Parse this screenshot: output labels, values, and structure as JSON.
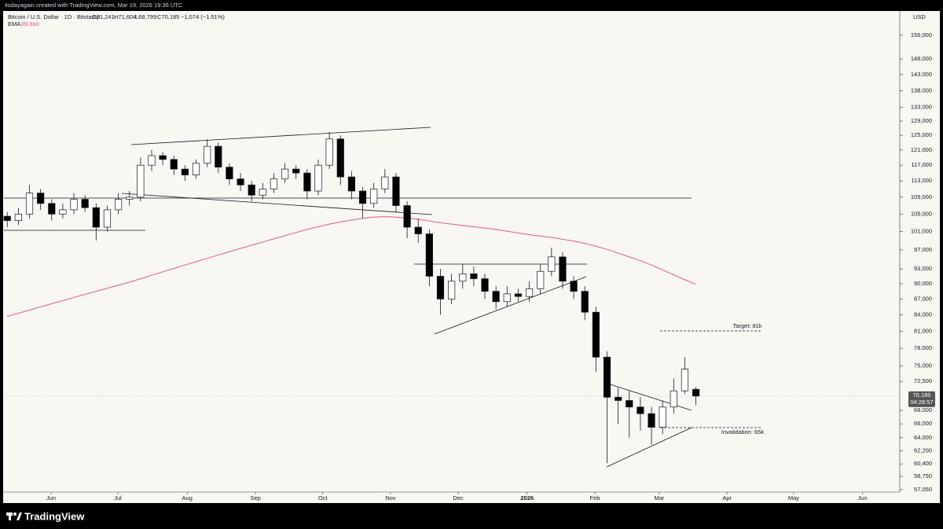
{
  "chart_data": {
    "type": "candlestick",
    "attribution": "itsdayagain created with TradingView.com, Mar 19, 2026 19:36 UTC",
    "title": "Bitcoin / U.S. Dollar · 1D · Bitstamp",
    "ohlc_labels": [
      "O71,241",
      "H71,604",
      "L68,799",
      "C70,185",
      "−1,074 (−1.51%)"
    ],
    "currency": "USD",
    "brand": "TradingView",
    "log_scale": true,
    "up_color": "#ffffff",
    "down_color": "#000000",
    "open": [
      104500,
      103500,
      105000,
      110000,
      107500,
      105000,
      106000,
      108500,
      106500,
      102000,
      106000,
      108500,
      109000,
      117000,
      119500,
      118500,
      116000,
      114500,
      117500,
      122000,
      116500,
      113500,
      112000,
      109500,
      111000,
      113500,
      116000,
      115000,
      110500,
      117000,
      124000,
      114000,
      110500,
      107500,
      111000,
      114000,
      107000,
      102000,
      100500,
      91500,
      87000,
      90500,
      92000,
      91000,
      88500,
      86500,
      88000,
      87500,
      89000,
      92500,
      95500,
      90500,
      88500,
      84500,
      76500,
      70000,
      69500,
      68500,
      67500,
      65500,
      68500,
      71000,
      71241
    ],
    "high": [
      105500,
      106500,
      112000,
      111000,
      108500,
      107500,
      110000,
      109500,
      107500,
      107000,
      110000,
      110500,
      119000,
      121000,
      120500,
      119500,
      117000,
      118500,
      124000,
      123000,
      117500,
      115000,
      113000,
      112500,
      115000,
      117500,
      117000,
      116000,
      118500,
      126000,
      125000,
      115500,
      111500,
      112500,
      116000,
      115000,
      108000,
      104000,
      101500,
      93000,
      92000,
      94000,
      93500,
      92000,
      89500,
      89500,
      89000,
      90500,
      94000,
      97500,
      96500,
      91500,
      89500,
      85500,
      77500,
      71500,
      71000,
      70000,
      68500,
      69500,
      73000,
      76500,
      71604
    ],
    "low": [
      102000,
      102500,
      104000,
      106000,
      103500,
      104000,
      105000,
      105500,
      99000,
      101000,
      105000,
      107000,
      108000,
      115500,
      117000,
      114500,
      113000,
      113500,
      116500,
      115000,
      112000,
      110500,
      108000,
      108500,
      110000,
      112500,
      113500,
      108500,
      109500,
      116000,
      112000,
      108500,
      104000,
      106500,
      110000,
      105500,
      99500,
      98500,
      89500,
      84000,
      86000,
      89000,
      89500,
      87000,
      85000,
      85500,
      86500,
      86500,
      88000,
      91500,
      89000,
      87000,
      83000,
      74000,
      60500,
      66000,
      64000,
      65000,
      63000,
      64500,
      67500,
      70500,
      68799
    ],
    "close": [
      103500,
      105000,
      110000,
      107500,
      105000,
      106000,
      108500,
      106500,
      102000,
      106000,
      108500,
      109000,
      117000,
      119500,
      118500,
      116000,
      114500,
      117500,
      122000,
      116500,
      113500,
      112000,
      109500,
      111000,
      113500,
      116000,
      115000,
      110500,
      117000,
      124000,
      114000,
      110500,
      107500,
      111000,
      114000,
      107000,
      102000,
      100500,
      91500,
      87000,
      90500,
      92000,
      91000,
      88500,
      86500,
      88000,
      87500,
      89000,
      92500,
      95500,
      90500,
      88500,
      84500,
      76500,
      70000,
      69500,
      68500,
      67500,
      65500,
      68500,
      71000,
      74500,
      70185
    ],
    "last_price_label": "70,185",
    "countdown": "04:28:57",
    "ema": {
      "name": "EMA",
      "color": "#e8597b",
      "last_label": "89,860",
      "values": [
        83700,
        84300,
        84900,
        85500,
        86100,
        86700,
        87300,
        87900,
        88500,
        89100,
        89700,
        90300,
        91000,
        91700,
        92400,
        93100,
        93800,
        94500,
        95200,
        95900,
        96600,
        97300,
        98000,
        98700,
        99400,
        100100,
        100800,
        101500,
        102100,
        102700,
        103200,
        103600,
        104000,
        104300,
        104400,
        104300,
        104100,
        103800,
        103400,
        103000,
        102700,
        102400,
        102100,
        101800,
        101500,
        101100,
        100700,
        100300,
        100000,
        99700,
        99300,
        98900,
        98400,
        97800,
        97100,
        96300,
        95500,
        94700,
        93800,
        92800,
        91800,
        90800,
        89860
      ]
    },
    "ylim": [
      56550,
      164600
    ],
    "yticks": [
      {
        "value": 156000,
        "label": "156,000"
      },
      {
        "value": 148000,
        "label": "148,000"
      },
      {
        "value": 143000,
        "label": "143,000"
      },
      {
        "value": 138000,
        "label": "138,000"
      },
      {
        "value": 133000,
        "label": "133,000"
      },
      {
        "value": 129000,
        "label": "129,000"
      },
      {
        "value": 125000,
        "label": "125,000"
      },
      {
        "value": 121000,
        "label": "121,000"
      },
      {
        "value": 117000,
        "label": "117,000"
      },
      {
        "value": 113000,
        "label": "113,000"
      },
      {
        "value": 109000,
        "label": "109,000"
      },
      {
        "value": 105000,
        "label": "105,000"
      },
      {
        "value": 101000,
        "label": "101,000"
      },
      {
        "value": 97000,
        "label": "97,000"
      },
      {
        "value": 93000,
        "label": "93,000"
      },
      {
        "value": 90000,
        "label": "90,000"
      },
      {
        "value": 87000,
        "label": "87,000"
      },
      {
        "value": 84000,
        "label": "84,000"
      },
      {
        "value": 81000,
        "label": "81,000"
      },
      {
        "value": 78000,
        "label": "78,000"
      },
      {
        "value": 75000,
        "label": "75,000"
      },
      {
        "value": 72500,
        "label": "72,500"
      },
      {
        "value": 68000,
        "label": "68,000"
      },
      {
        "value": 66000,
        "label": "66,000"
      },
      {
        "value": 64000,
        "label": "64,000"
      },
      {
        "value": 62200,
        "label": "62,200"
      },
      {
        "value": 60400,
        "label": "60,400"
      },
      {
        "value": 58750,
        "label": "58,750"
      },
      {
        "value": 57050,
        "label": "57,050"
      }
    ],
    "xlim": [
      -0.3,
      80
    ],
    "xticks": [
      {
        "value": 3.95,
        "label": "Jun"
      },
      {
        "value": 9.96,
        "label": "Jul"
      },
      {
        "value": 16.2,
        "label": "Aug"
      },
      {
        "value": 22.35,
        "label": "Sep"
      },
      {
        "value": 28.4,
        "label": "Oct"
      },
      {
        "value": 34.5,
        "label": "Nov"
      },
      {
        "value": 40.6,
        "label": "Dec"
      },
      {
        "value": 46.8,
        "label": "2026"
      },
      {
        "value": 52.9,
        "label": "Feb"
      },
      {
        "value": 58.7,
        "label": "Mar"
      },
      {
        "value": 64.8,
        "label": "Apr"
      },
      {
        "value": 70.8,
        "label": "May"
      },
      {
        "value": 77.0,
        "label": "Jun"
      }
    ],
    "annotations": [
      "Target: 81k",
      "Invalidation: 65k"
    ]
  }
}
